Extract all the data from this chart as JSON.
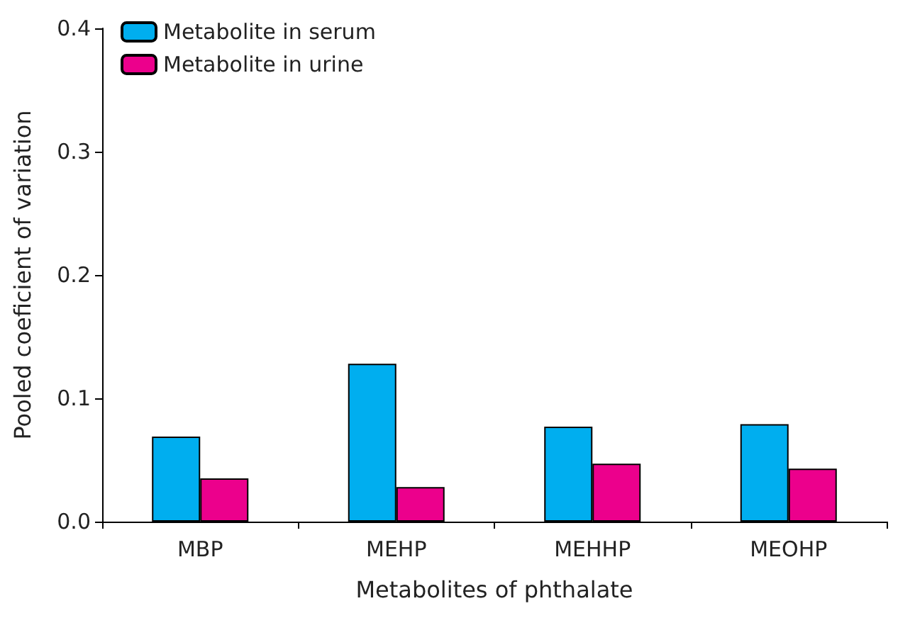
{
  "chart_data": {
    "type": "bar",
    "xlabel": "Metabolites of phthalate",
    "ylabel": "Pooled coeficient of variation",
    "categories": [
      "MBP",
      "MEHP",
      "MEHHP",
      "MEOHP"
    ],
    "series": [
      {
        "name": "Metabolite in serum",
        "color": "#00aeef",
        "values": [
          0.069,
          0.128,
          0.077,
          0.079
        ]
      },
      {
        "name": "Metabolite in urine",
        "color": "#ec008c",
        "values": [
          0.035,
          0.028,
          0.047,
          0.043
        ]
      }
    ],
    "ylim": [
      0,
      0.4
    ],
    "yticks": [
      {
        "value": 0,
        "label": "0.0"
      },
      {
        "value": 0.1,
        "label": "0.1"
      },
      {
        "value": 0.2,
        "label": "0.2"
      },
      {
        "value": 0.3,
        "label": "0.3"
      },
      {
        "value": 0.4,
        "label": "0.4"
      }
    ],
    "grid": false,
    "legend": "top left"
  }
}
